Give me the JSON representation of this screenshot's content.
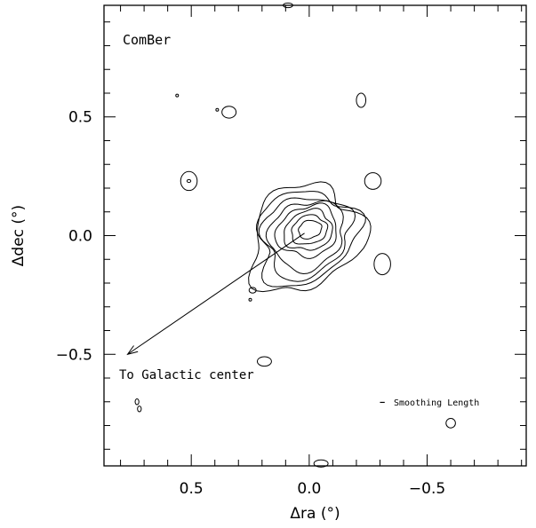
{
  "chart_data": {
    "type": "contour",
    "title": "ComBer",
    "xlabel": "Δra (°)",
    "ylabel": "Δdec (°)",
    "xlim": [
      0.87,
      -0.92
    ],
    "ylim": [
      -0.97,
      0.97
    ],
    "x_reversed": true,
    "xticks": [
      0.5,
      0.0,
      -0.5
    ],
    "xtick_labels": [
      "0.5",
      "0.0",
      "−0.5"
    ],
    "yticks": [
      0.5,
      0.0,
      -0.5
    ],
    "ytick_labels": [
      "0.5",
      "0.0",
      "−0.5"
    ],
    "grid": false,
    "central_source": {
      "center": [
        0.02,
        0.01
      ],
      "contour_levels": 8
    },
    "contours": [
      {
        "x": 0.09,
        "y": 0.97,
        "rx": 0.02,
        "ry": 0.01
      },
      {
        "x": 0.56,
        "y": 0.59,
        "rx": 0.005,
        "ry": 0.005
      },
      {
        "x": 0.34,
        "y": 0.52,
        "rx": 0.03,
        "ry": 0.025
      },
      {
        "x": 0.39,
        "y": 0.53,
        "rx": 0.005,
        "ry": 0.005
      },
      {
        "x": -0.22,
        "y": 0.57,
        "rx": 0.02,
        "ry": 0.03
      },
      {
        "x": 0.51,
        "y": 0.23,
        "rx": 0.035,
        "ry": 0.04
      },
      {
        "x": 0.51,
        "y": 0.23,
        "rx": 0.008,
        "ry": 0.006
      },
      {
        "x": -0.27,
        "y": 0.23,
        "rx": 0.035,
        "ry": 0.035
      },
      {
        "x": -0.31,
        "y": -0.12,
        "rx": 0.035,
        "ry": 0.045
      },
      {
        "x": 0.24,
        "y": -0.23,
        "rx": 0.015,
        "ry": 0.012
      },
      {
        "x": 0.25,
        "y": -0.27,
        "rx": 0.003,
        "ry": 0.005
      },
      {
        "x": 0.19,
        "y": -0.53,
        "rx": 0.03,
        "ry": 0.02
      },
      {
        "x": 0.73,
        "y": -0.7,
        "rx": 0.008,
        "ry": 0.012
      },
      {
        "x": 0.72,
        "y": -0.73,
        "rx": 0.008,
        "ry": 0.012
      },
      {
        "x": -0.6,
        "y": -0.79,
        "rx": 0.02,
        "ry": 0.02
      },
      {
        "x": -0.05,
        "y": -0.96,
        "rx": 0.03,
        "ry": 0.015
      }
    ],
    "annotations": [
      {
        "text": "To Galactic center",
        "x": 0.78,
        "y": -0.58
      },
      {
        "text": "Smoothing Length",
        "x": -0.32,
        "y": -0.71
      }
    ],
    "arrow": {
      "from": [
        0.02,
        0.01
      ],
      "to": [
        0.77,
        -0.5
      ]
    },
    "smoothing_bar": {
      "x": [
        -0.3,
        -0.32
      ],
      "y": -0.71
    }
  }
}
